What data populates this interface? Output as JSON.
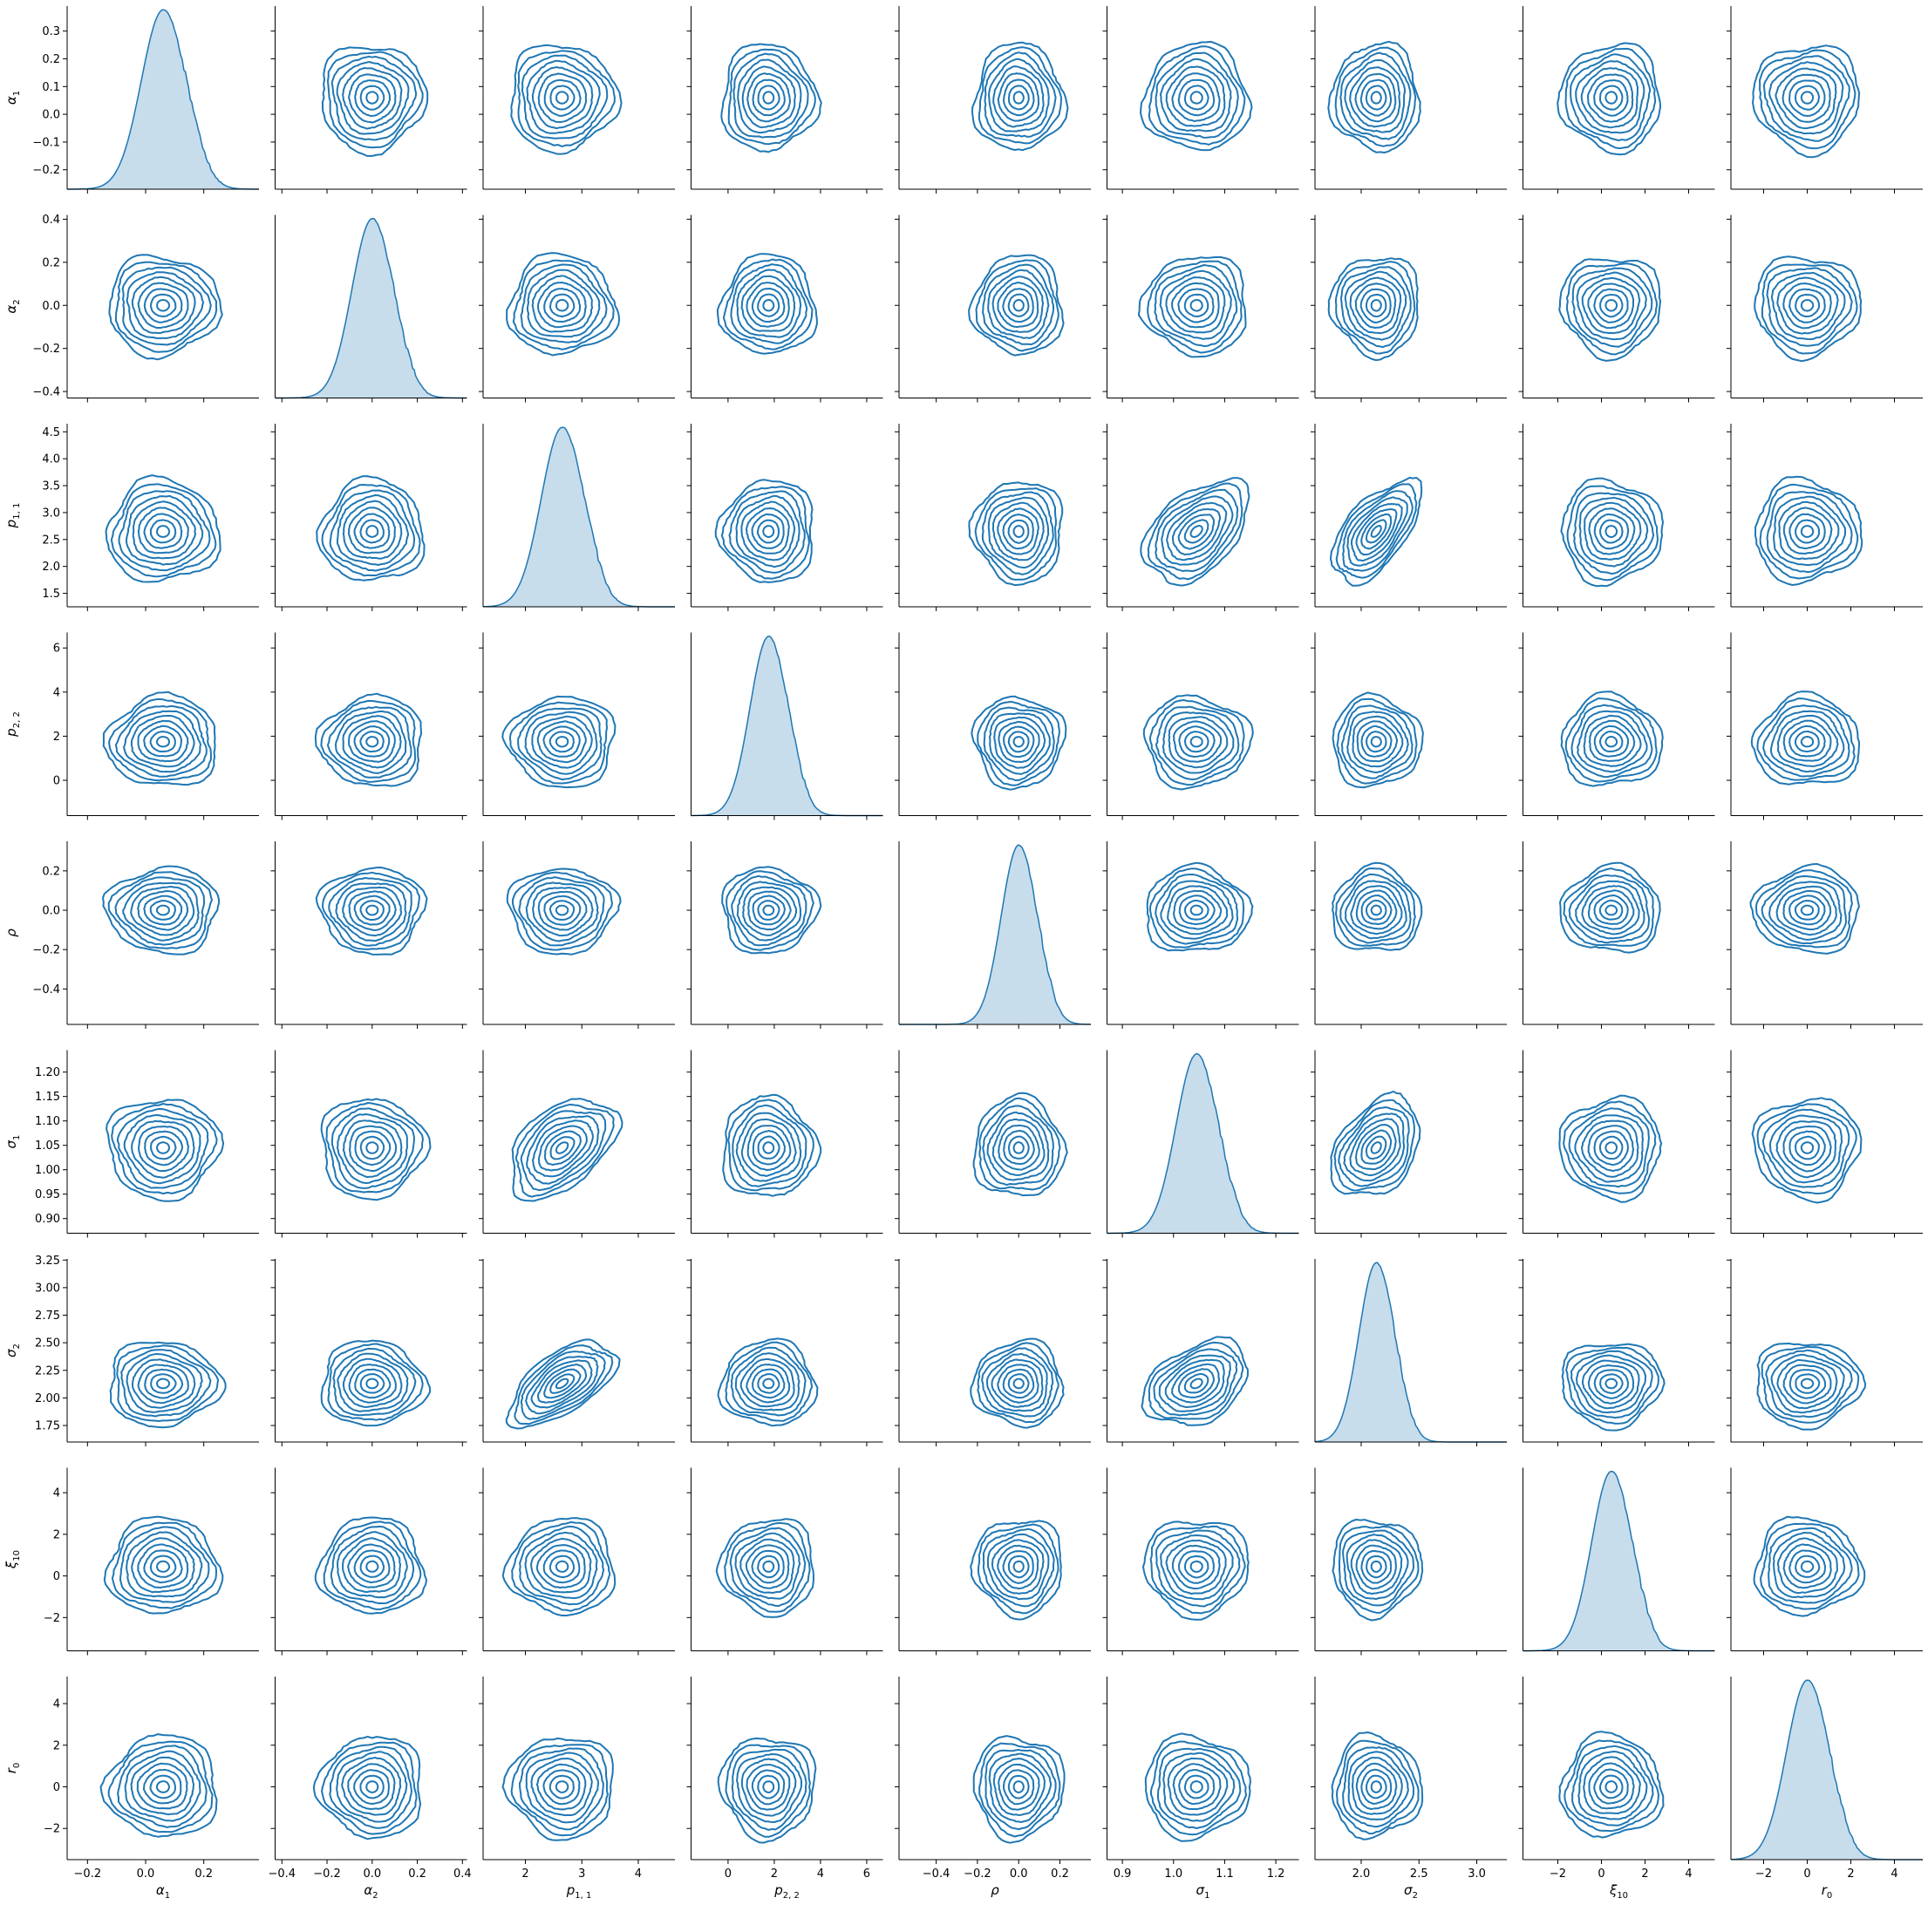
{
  "chart_data": {
    "type": "pairplot",
    "description_type": "kde pair grid: diagonal univariate KDE, off-diagonal bivariate KDE contours",
    "color": "#1f77b4",
    "variables": [
      {
        "key": "alpha1",
        "label": "α1",
        "main": "α",
        "sub": "1",
        "range": [
          -0.27,
          0.39
        ],
        "ticks": [
          -0.2,
          -0.1,
          0.0,
          0.1,
          0.2,
          0.3
        ],
        "tick_labels": [
          "−0.2",
          "−0.1",
          "0.0",
          "0.1",
          "0.2",
          "0.3"
        ],
        "x_ticks": [
          -0.2,
          0.0,
          0.2
        ],
        "x_tick_labels": [
          "−0.2",
          "0.0",
          "0.2"
        ],
        "mean": 0.06,
        "sd": 0.075
      },
      {
        "key": "alpha2",
        "label": "α2",
        "main": "α",
        "sub": "2",
        "range": [
          -0.43,
          0.42
        ],
        "ticks": [
          -0.4,
          -0.2,
          0.0,
          0.2,
          0.4
        ],
        "tick_labels": [
          "−0.4",
          "−0.2",
          "0.0",
          "0.2",
          "0.4"
        ],
        "x_ticks": [
          -0.4,
          -0.2,
          0.0,
          0.2,
          0.4
        ],
        "x_tick_labels": [
          "−0.4",
          "−0.2",
          "0.0",
          "0.2",
          "0.4"
        ],
        "mean": 0.0,
        "sd": 0.09
      },
      {
        "key": "p11",
        "label": "p1,1",
        "main": "p",
        "sub": "1, 1",
        "range": [
          1.25,
          4.65
        ],
        "ticks": [
          1.5,
          2.0,
          2.5,
          3.0,
          3.5,
          4.0,
          4.5
        ],
        "tick_labels": [
          "1.5",
          "2.0",
          "2.5",
          "3.0",
          "3.5",
          "4.0",
          "4.5"
        ],
        "x_ticks": [
          2,
          3,
          4
        ],
        "x_tick_labels": [
          "2",
          "3",
          "4"
        ],
        "mean": 2.65,
        "sd": 0.37
      },
      {
        "key": "p22",
        "label": "p2,2",
        "main": "p",
        "sub": "2, 2",
        "range": [
          -1.6,
          6.7
        ],
        "ticks": [
          0,
          2,
          4,
          6
        ],
        "tick_labels": [
          "0",
          "2",
          "4",
          "6"
        ],
        "x_ticks": [
          0,
          2,
          4,
          6
        ],
        "x_tick_labels": [
          "0",
          "2",
          "4",
          "6"
        ],
        "mean": 1.75,
        "sd": 0.8
      },
      {
        "key": "rho",
        "label": "ρ",
        "main": "ρ",
        "sub": "",
        "range": [
          -0.58,
          0.35
        ],
        "ticks": [
          -0.4,
          -0.2,
          0.0,
          0.2
        ],
        "tick_labels": [
          "−0.4",
          "−0.2",
          "0.0",
          "0.2"
        ],
        "x_ticks": [
          -0.4,
          -0.2,
          0.0,
          0.2
        ],
        "x_tick_labels": [
          "−0.4",
          "−0.2",
          "0.0",
          "0.2"
        ],
        "mean": 0.0,
        "sd": 0.085
      },
      {
        "key": "sigma1",
        "label": "σ1",
        "main": "σ",
        "sub": "1",
        "range": [
          0.87,
          1.245
        ],
        "ticks": [
          0.9,
          0.95,
          1.0,
          1.05,
          1.1,
          1.15,
          1.2
        ],
        "tick_labels": [
          "0.90",
          "0.95",
          "1.00",
          "1.05",
          "1.10",
          "1.15",
          "1.20"
        ],
        "x_ticks": [
          0.9,
          1.0,
          1.1,
          1.2
        ],
        "x_tick_labels": [
          "0.9",
          "1.0",
          "1.1",
          "1.2"
        ],
        "mean": 1.045,
        "sd": 0.04
      },
      {
        "key": "sigma2",
        "label": "σ2",
        "main": "σ",
        "sub": "2",
        "range": [
          1.6,
          3.26
        ],
        "ticks": [
          1.75,
          2.0,
          2.25,
          2.5,
          2.75,
          3.0,
          3.25
        ],
        "tick_labels": [
          "1.75",
          "2.00",
          "2.25",
          "2.50",
          "2.75",
          "3.00",
          "3.25"
        ],
        "x_ticks": [
          2.0,
          2.5,
          3.0
        ],
        "x_tick_labels": [
          "2.0",
          "2.5",
          "3.0"
        ],
        "mean": 2.13,
        "sd": 0.15
      },
      {
        "key": "xi10",
        "label": "ξ10",
        "main": "ξ",
        "sub": "10",
        "range": [
          -3.6,
          5.2
        ],
        "ticks": [
          -2,
          0,
          2,
          4
        ],
        "tick_labels": [
          "−2",
          "0",
          "2",
          "4"
        ],
        "x_ticks": [
          -2,
          0,
          2,
          4
        ],
        "x_tick_labels": [
          "−2",
          "0",
          "2",
          "4"
        ],
        "mean": 0.45,
        "sd": 0.9
      },
      {
        "key": "r0",
        "label": "r0",
        "main": "r",
        "sub": "0",
        "range": [
          -3.5,
          5.3
        ],
        "ticks": [
          -2,
          0,
          2,
          4
        ],
        "tick_labels": [
          "−2",
          "0",
          "2",
          "4"
        ],
        "x_ticks": [
          -2,
          0,
          2,
          4
        ],
        "x_tick_labels": [
          "−2",
          "0",
          "2",
          "4"
        ],
        "mean": 0.0,
        "sd": 0.95
      }
    ],
    "correlations": [
      {
        "pair": [
          "p11",
          "sigma1"
        ],
        "r": 0.45
      },
      {
        "pair": [
          "p11",
          "sigma2"
        ],
        "r": 0.6
      },
      {
        "pair": [
          "sigma1",
          "sigma2"
        ],
        "r": 0.35
      }
    ],
    "contour_levels": 9,
    "grid": false,
    "legend": "none"
  }
}
